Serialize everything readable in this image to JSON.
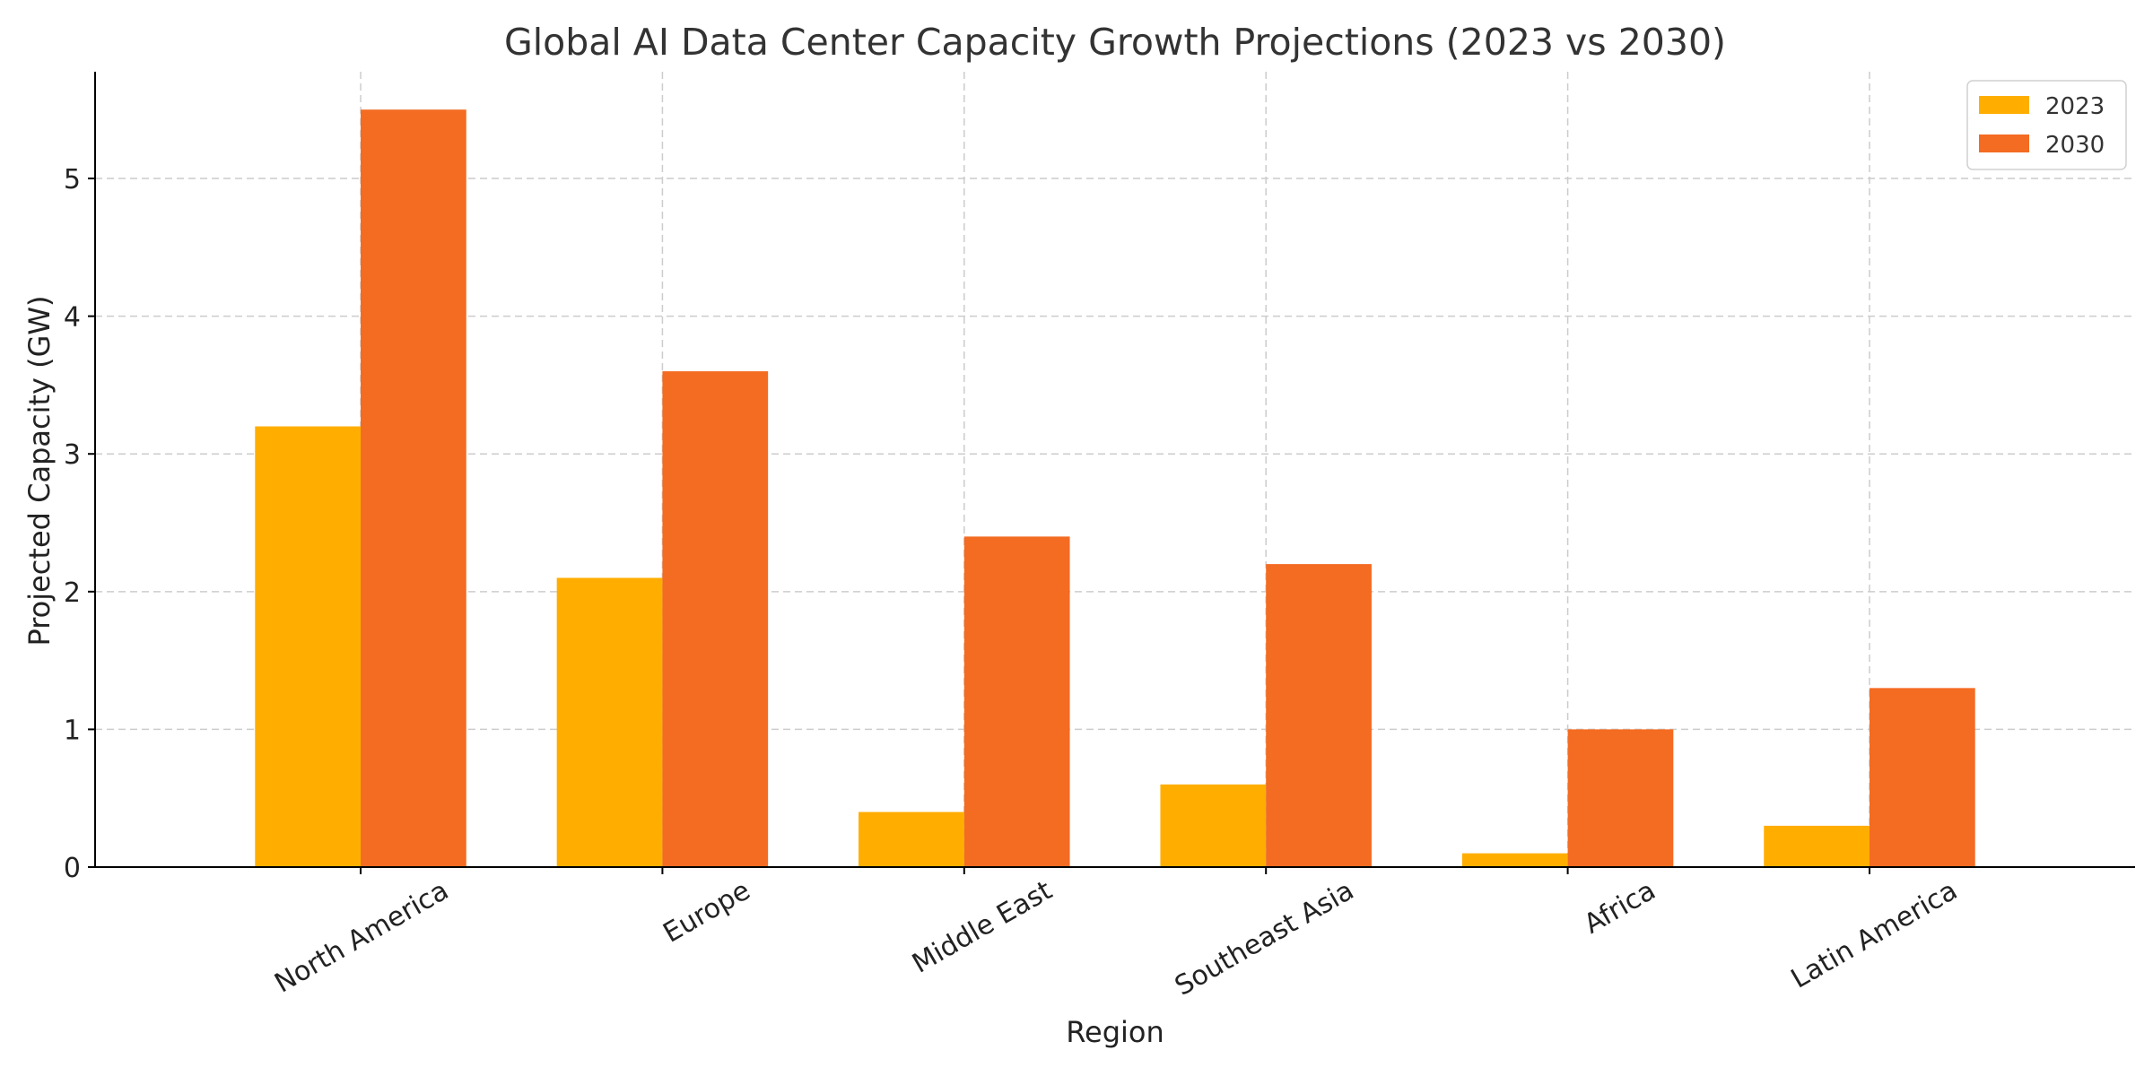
{
  "chart_data": {
    "type": "bar",
    "title": "Global AI Data Center Capacity Growth Projections (2023 vs 2030)",
    "xlabel": "Region",
    "ylabel": "Projected Capacity (GW)",
    "categories": [
      "North America",
      "Europe",
      "Middle East",
      "Southeast Asia",
      "Africa",
      "Latin America"
    ],
    "series": [
      {
        "name": "2023",
        "values": [
          3.2,
          2.1,
          0.4,
          0.6,
          0.1,
          0.3
        ],
        "color": "#FFAE00"
      },
      {
        "name": "2030",
        "values": [
          5.5,
          3.6,
          2.4,
          2.2,
          1.0,
          1.3
        ],
        "color": "#F46B22"
      }
    ],
    "ylim": [
      0,
      5.775
    ],
    "yticks": [
      0,
      1,
      2,
      3,
      4,
      5
    ],
    "grid": true,
    "legend": "top-right"
  }
}
